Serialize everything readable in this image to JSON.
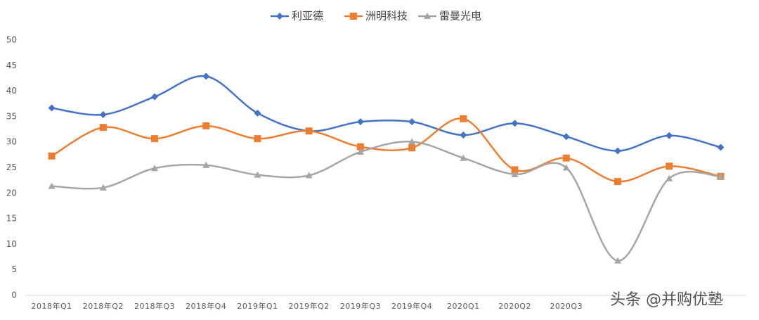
{
  "chart_data": {
    "type": "line",
    "smooth": true,
    "categories": [
      "2018年Q1",
      "2018年Q2",
      "2018年Q3",
      "2018年Q4",
      "2019年Q1",
      "2019年Q2",
      "2019年Q3",
      "2019年Q4",
      "2020Q1",
      "2020Q2",
      "2020Q3",
      null,
      null,
      null
    ],
    "series": [
      {
        "name": "利亚德",
        "color": "#4472c4",
        "marker": "diamond",
        "values": [
          36.7,
          35.4,
          38.9,
          42.9,
          35.7,
          32.2,
          34.0,
          34.0,
          31.4,
          33.7,
          31.1,
          28.3,
          31.3,
          29.0
        ]
      },
      {
        "name": "洲明科技",
        "color": "#ed7d31",
        "marker": "square",
        "values": [
          27.3,
          32.9,
          30.7,
          33.2,
          30.7,
          32.2,
          29.1,
          28.9,
          34.6,
          24.6,
          26.9,
          22.3,
          25.3,
          23.3
        ]
      },
      {
        "name": "雷曼光电",
        "color": "#a5a5a5",
        "marker": "triangle",
        "values": [
          21.4,
          21.1,
          24.9,
          25.5,
          23.6,
          23.5,
          28.1,
          30.1,
          26.9,
          23.7,
          25.0,
          6.8,
          22.9,
          23.3
        ]
      }
    ],
    "ylim": [
      0,
      50
    ],
    "yticks": [
      0,
      5,
      10,
      15,
      20,
      25,
      30,
      35,
      40,
      45,
      50
    ],
    "grid": false,
    "legend": "top",
    "watermark": "头条 @并购优塾"
  }
}
